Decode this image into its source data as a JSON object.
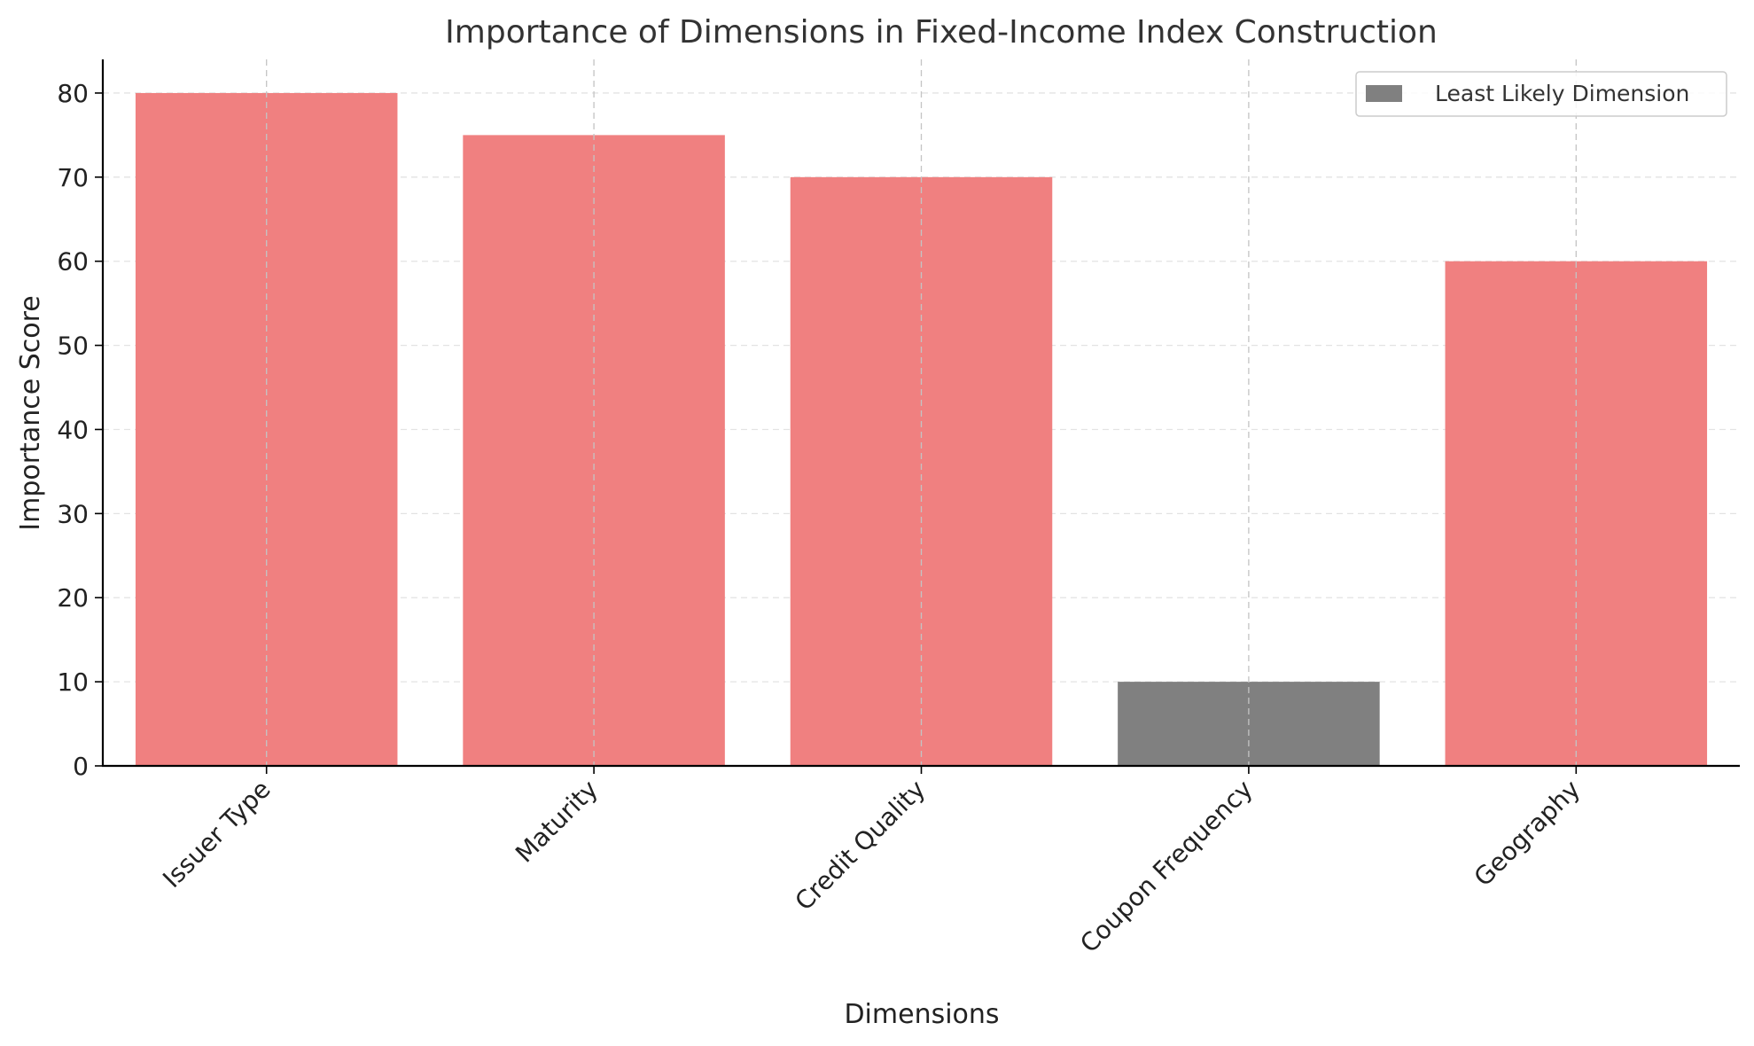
{
  "chart_data": {
    "type": "bar",
    "title": "Importance of Dimensions in Fixed-Income Index Construction",
    "xlabel": "Dimensions",
    "ylabel": "Importance Score",
    "categories": [
      "Issuer Type",
      "Maturity",
      "Credit Quality",
      "Coupon Frequency",
      "Geography"
    ],
    "values": [
      80,
      75,
      70,
      10,
      60
    ],
    "highlight_index": 3,
    "ylim": [
      0,
      84
    ],
    "yticks": [
      0,
      10,
      20,
      30,
      40,
      50,
      60,
      70,
      80
    ],
    "grid": true,
    "legend": {
      "placement": "top-right",
      "entries": [
        {
          "label": "Least Likely Dimension",
          "color": "#808080"
        }
      ]
    },
    "colors": {
      "bar": "#f08080",
      "highlight": "#808080"
    }
  }
}
